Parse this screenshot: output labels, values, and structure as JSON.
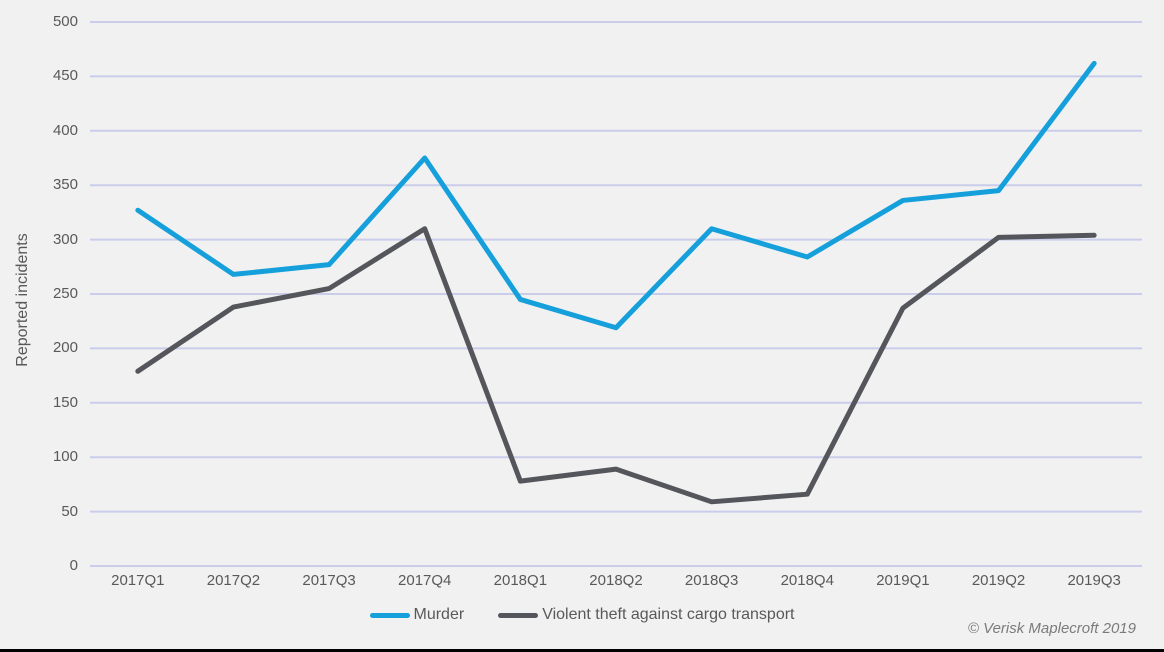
{
  "chart_data": {
    "type": "line",
    "categories": [
      "2017Q1",
      "2017Q2",
      "2017Q3",
      "2017Q4",
      "2018Q1",
      "2018Q2",
      "2018Q3",
      "2018Q4",
      "2019Q1",
      "2019Q2",
      "2019Q3"
    ],
    "series": [
      {
        "name": "Murder",
        "color": "#16A0DB",
        "values": [
          327,
          268,
          277,
          375,
          245,
          219,
          310,
          284,
          336,
          345,
          462
        ]
      },
      {
        "name": "Violent theft against cargo transport",
        "color": "#54565B",
        "values": [
          179,
          238,
          255,
          310,
          78,
          89,
          59,
          66,
          237,
          302,
          304
        ]
      }
    ],
    "ylabel": "Reported incidents",
    "ylim": [
      0,
      500
    ],
    "ytick_step": 50,
    "grid": "horizontal",
    "legend_position": "bottom-center"
  },
  "colors": {
    "background": "#F1F1F2",
    "gridline": "#C9CDEA",
    "axis_text": "#595959",
    "bottom_rule": "#000000"
  },
  "footer": {
    "copyright": "© Verisk Maplecroft 2019"
  }
}
